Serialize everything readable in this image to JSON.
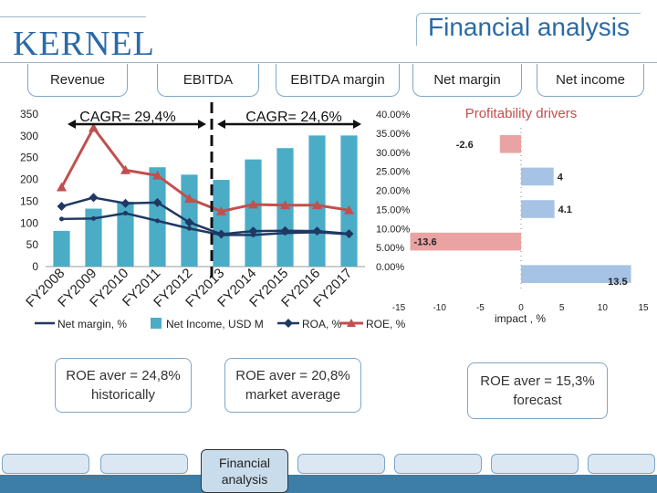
{
  "header": {
    "logo": "KERNEL",
    "title": "Financial analysis"
  },
  "tabs": [
    {
      "label": "Revenue"
    },
    {
      "label": "EBITDA"
    },
    {
      "label": "EBITDA margin"
    },
    {
      "label": "Net margin"
    },
    {
      "label": "Net income"
    }
  ],
  "notes": {
    "historic": "ROE aver = 24,8%\nhistorically",
    "market": "ROE aver = 20,8%\nmarket average",
    "forecast": "ROE aver = 15,3%\nforecast"
  },
  "footer": {
    "active_label": "Financial\nanalysis"
  },
  "colors": {
    "brand": "#2a6aa6",
    "bar": "#4bacc6",
    "net_margin": "#1f3864",
    "roa": "#4f6e9c",
    "roe": "#c0504d",
    "driver_pos": "#a6c3e6",
    "driver_neg": "#e9a3a3"
  },
  "chart_data": [
    {
      "type": "bar",
      "categories": [
        "FY2008",
        "FY2009",
        "FY2010",
        "FY2011",
        "FY2012",
        "FY2013",
        "FY2014",
        "FY2015",
        "FY2016",
        "FY2017"
      ],
      "y_left_ticks": [
        "0",
        "50",
        "100",
        "150",
        "200",
        "250",
        "300",
        "350"
      ],
      "y_left_range": [
        0,
        350
      ],
      "y_right_ticks": [
        "0.00%",
        "5.00%",
        "10.00%",
        "15.00%",
        "20.00%",
        "25.00%",
        "30.00%",
        "35.00%",
        "40.00%"
      ],
      "y_right_range": [
        0,
        40
      ],
      "annotations": [
        "CAGR= 29,4%",
        "CAGR= 24,6%"
      ],
      "legend_position": "bottom",
      "series": [
        {
          "name": "Net Income, USD  M",
          "kind": "bar",
          "axis": "left",
          "values": [
            82,
            133,
            149,
            228,
            211,
            199,
            246,
            272,
            301,
            301
          ]
        },
        {
          "name": "Net margin, %",
          "kind": "line",
          "axis": "right",
          "values": [
            12.5,
            12.6,
            14.0,
            12.0,
            10.0,
            8.3,
            8.3,
            8.8,
            9.0,
            8.5
          ]
        },
        {
          "name": "ROA, %",
          "kind": "line",
          "axis": "right",
          "values": [
            15.8,
            18.1,
            16.6,
            16.8,
            11.6,
            8.5,
            9.3,
            9.4,
            9.3,
            8.6
          ]
        },
        {
          "name": "ROE, %",
          "kind": "line",
          "axis": "right",
          "values": [
            20.8,
            36.4,
            25.3,
            23.9,
            17.8,
            14.5,
            16.3,
            16.1,
            16.1,
            14.8
          ]
        }
      ]
    },
    {
      "type": "bar",
      "orientation": "horizontal",
      "title": "Profitability drivers",
      "xlabel": "impact , %",
      "x_ticks": [
        "-15",
        "-10",
        "-5",
        "0",
        "5",
        "10",
        "15"
      ],
      "xlim": [
        -15,
        15
      ],
      "values": [
        -2.6,
        4,
        4.1,
        -13.6,
        13.5
      ],
      "value_labels": [
        "-2.6",
        "4",
        "4.1",
        "-13.6",
        "13.5"
      ]
    }
  ]
}
